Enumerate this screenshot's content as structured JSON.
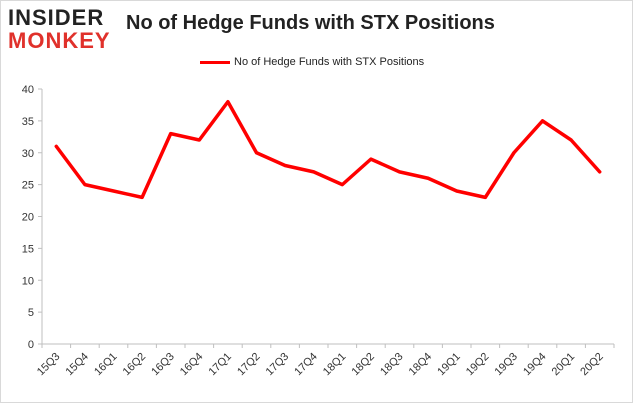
{
  "logo": {
    "top": "INSIDER",
    "bottom": "MONKEY"
  },
  "chart_data": {
    "type": "line",
    "title": "No of Hedge Funds with STX Positions",
    "categories": [
      "15Q3",
      "15Q4",
      "16Q1",
      "16Q2",
      "16Q3",
      "16Q4",
      "17Q1",
      "17Q2",
      "17Q3",
      "17Q4",
      "18Q1",
      "18Q2",
      "18Q3",
      "18Q4",
      "19Q1",
      "19Q2",
      "19Q3",
      "19Q4",
      "20Q1",
      "20Q2"
    ],
    "series": [
      {
        "name": "No of Hedge Funds with STX Positions",
        "values": [
          31,
          25,
          24,
          23,
          33,
          32,
          38,
          30,
          28,
          27,
          25,
          29,
          27,
          26,
          24,
          23,
          30,
          35,
          32,
          27
        ]
      }
    ],
    "yticks": [
      0,
      5,
      10,
      15,
      20,
      25,
      30,
      35,
      40
    ],
    "ylim": [
      0,
      40
    ],
    "grid": false,
    "legend": "top-center",
    "colors": {
      "series": "#ff0000",
      "axis": "#bfbfbf"
    }
  }
}
